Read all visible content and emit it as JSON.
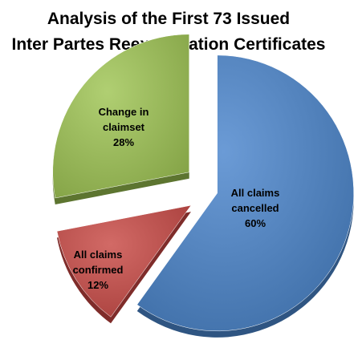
{
  "chart_data": {
    "type": "pie",
    "title": "Analysis of the First 73 Issued Inter Partes Reexamination Certificates",
    "title_lines": [
      "Analysis of the First 73 Issued",
      "Inter Partes Reexamination Certificates"
    ],
    "exploded": true,
    "style": "3d",
    "legend": "none",
    "slices": [
      {
        "name": "All claims cancelled",
        "label_lines": [
          "All claims",
          "cancelled",
          "60%"
        ],
        "value": 60,
        "percent": "60%",
        "color": "#4f81bd"
      },
      {
        "name": "All claims confirmed",
        "label_lines": [
          "All claims",
          "confirmed",
          "12%"
        ],
        "value": 12,
        "percent": "12%",
        "color": "#c0504d"
      },
      {
        "name": "Change in claimset",
        "label_lines": [
          "Change in",
          "claimset",
          "28%"
        ],
        "value": 28,
        "percent": "28%",
        "color": "#9bbb59"
      }
    ]
  }
}
